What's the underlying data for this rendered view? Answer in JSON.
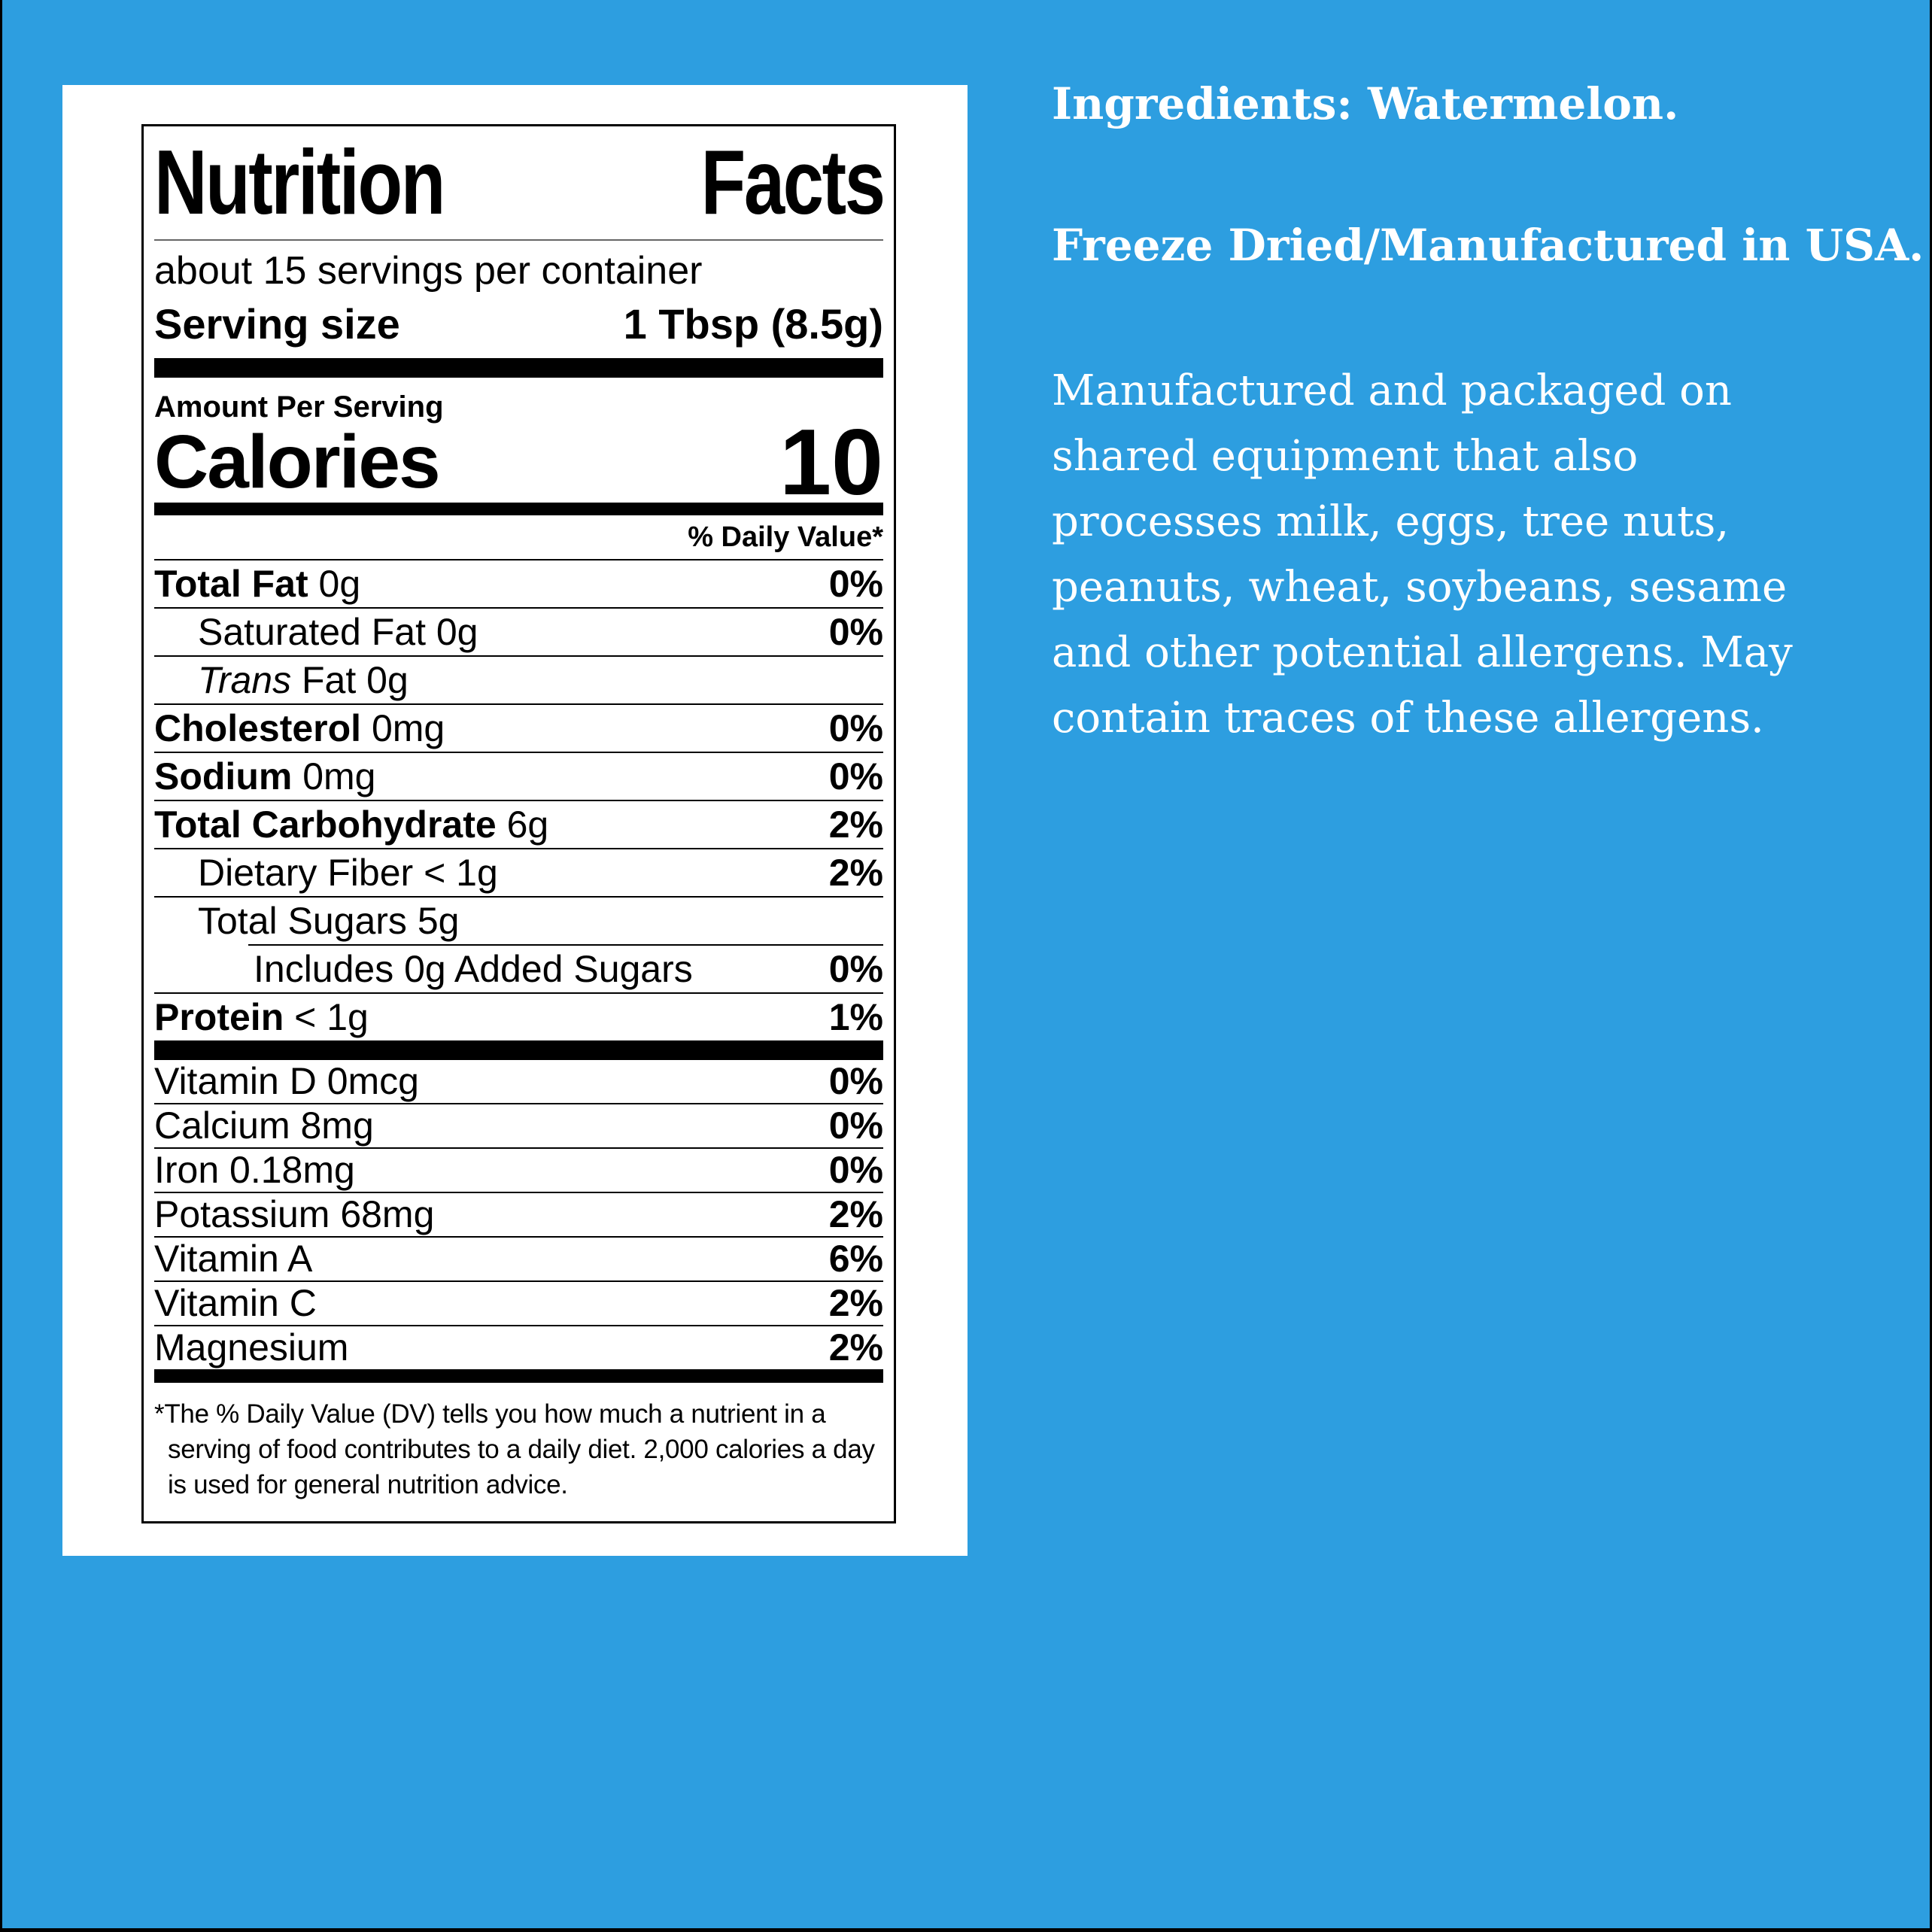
{
  "colors": {
    "background_blue": "#2D9EE0",
    "card_white": "#ffffff",
    "label_ink": "#000000",
    "side_text": "#ffffff"
  },
  "label": {
    "title_words": [
      "Nutrition",
      "Facts"
    ],
    "servings_per_container": "about 15 servings per container",
    "serving_size_label": "Serving size",
    "serving_size_value": "1 Tbsp (8.5g)",
    "amount_per_serving": "Amount Per Serving",
    "calories_label": "Calories",
    "calories_value": "10",
    "daily_value_header": "% Daily Value*",
    "rows": [
      {
        "bold": "Total Fat",
        "text": " 0g",
        "value": "0%"
      },
      {
        "text": "Saturated Fat 0g",
        "value": "0%"
      },
      {
        "italic": "Trans",
        "text": " Fat 0g",
        "value": ""
      },
      {
        "bold": "Cholesterol",
        "text": " 0mg",
        "value": "0%"
      },
      {
        "bold": "Sodium",
        "text": " 0mg",
        "value": "0%"
      },
      {
        "bold": "Total Carbohydrate",
        "text": " 6g",
        "value": "2%"
      },
      {
        "text": "Dietary Fiber < 1g",
        "value": "2%"
      },
      {
        "text": "Total Sugars 5g",
        "value": ""
      },
      {
        "text": "Includes 0g Added Sugars",
        "value": "0%"
      },
      {
        "bold": "Protein",
        "text": " < 1g",
        "value": "1%"
      }
    ],
    "vitamins": [
      {
        "text": "Vitamin D 0mcg",
        "value": "0%"
      },
      {
        "text": "Calcium 8mg",
        "value": "0%"
      },
      {
        "text": "Iron 0.18mg",
        "value": "0%"
      },
      {
        "text": "Potassium 68mg",
        "value": "2%"
      },
      {
        "text": "Vitamin A",
        "value": "6%"
      },
      {
        "text": "Vitamin C",
        "value": "2%"
      },
      {
        "text": "Magnesium",
        "value": "2%"
      }
    ],
    "footnote": "*The % Daily Value (DV) tells you how much a nutrient in a serving of food contributes to a daily diet. 2,000 calories a day is used for general nutrition advice."
  },
  "info": {
    "ingredients": "Ingredients: Watermelon.",
    "origin": "Freeze Dried/Manufactured in USA.",
    "allergen_lines": [
      "Manufactured and packaged on",
      "shared equipment that also",
      "processes milk, eggs, tree nuts,",
      "peanuts, wheat, soybeans, sesame",
      "and other potential allergens. May",
      "contain traces of these allergens."
    ]
  }
}
